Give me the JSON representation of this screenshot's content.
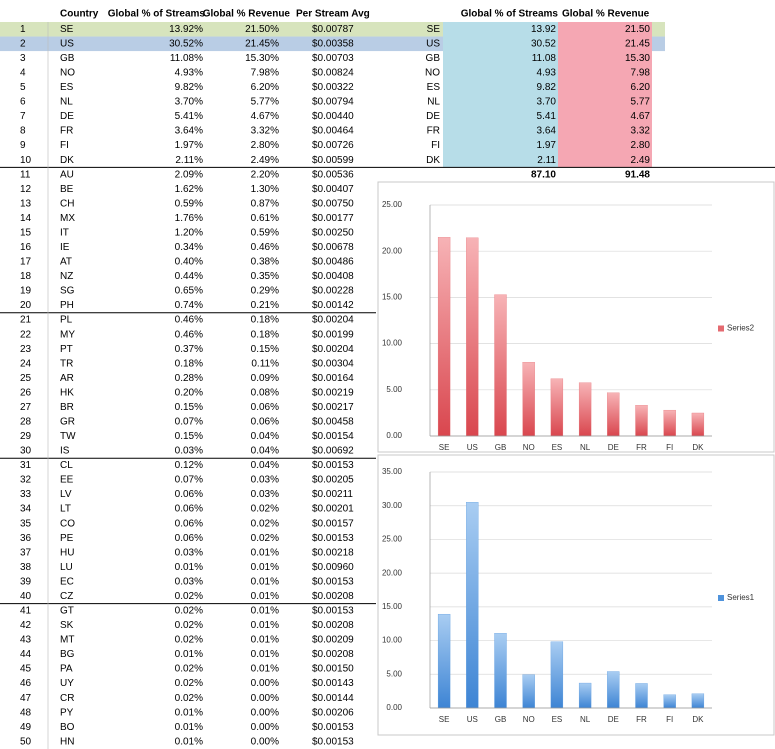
{
  "table": {
    "columns": [
      "Country",
      "Global % of Streams",
      "Global % Revenue",
      "Per Stream Avg"
    ],
    "rows": [
      [
        "1",
        "SE",
        "13.92%",
        "21.50%",
        "$0.00787"
      ],
      [
        "2",
        "US",
        "30.52%",
        "21.45%",
        "$0.00358"
      ],
      [
        "3",
        "GB",
        "11.08%",
        "15.30%",
        "$0.00703"
      ],
      [
        "4",
        "NO",
        "4.93%",
        "7.98%",
        "$0.00824"
      ],
      [
        "5",
        "ES",
        "9.82%",
        "6.20%",
        "$0.00322"
      ],
      [
        "6",
        "NL",
        "3.70%",
        "5.77%",
        "$0.00794"
      ],
      [
        "7",
        "DE",
        "5.41%",
        "4.67%",
        "$0.00440"
      ],
      [
        "8",
        "FR",
        "3.64%",
        "3.32%",
        "$0.00464"
      ],
      [
        "9",
        "FI",
        "1.97%",
        "2.80%",
        "$0.00726"
      ],
      [
        "10",
        "DK",
        "2.11%",
        "2.49%",
        "$0.00599"
      ],
      [
        "11",
        "AU",
        "2.09%",
        "2.20%",
        "$0.00536"
      ],
      [
        "12",
        "BE",
        "1.62%",
        "1.30%",
        "$0.00407"
      ],
      [
        "13",
        "CH",
        "0.59%",
        "0.87%",
        "$0.00750"
      ],
      [
        "14",
        "MX",
        "1.76%",
        "0.61%",
        "$0.00177"
      ],
      [
        "15",
        "IT",
        "1.20%",
        "0.59%",
        "$0.00250"
      ],
      [
        "16",
        "IE",
        "0.34%",
        "0.46%",
        "$0.00678"
      ],
      [
        "17",
        "AT",
        "0.40%",
        "0.38%",
        "$0.00486"
      ],
      [
        "18",
        "NZ",
        "0.44%",
        "0.35%",
        "$0.00408"
      ],
      [
        "19",
        "SG",
        "0.65%",
        "0.29%",
        "$0.00228"
      ],
      [
        "20",
        "PH",
        "0.74%",
        "0.21%",
        "$0.00142"
      ],
      [
        "21",
        "PL",
        "0.46%",
        "0.18%",
        "$0.00204"
      ],
      [
        "22",
        "MY",
        "0.46%",
        "0.18%",
        "$0.00199"
      ],
      [
        "23",
        "PT",
        "0.37%",
        "0.15%",
        "$0.00204"
      ],
      [
        "24",
        "TR",
        "0.18%",
        "0.11%",
        "$0.00304"
      ],
      [
        "25",
        "AR",
        "0.28%",
        "0.09%",
        "$0.00164"
      ],
      [
        "26",
        "HK",
        "0.20%",
        "0.08%",
        "$0.00219"
      ],
      [
        "27",
        "BR",
        "0.15%",
        "0.06%",
        "$0.00217"
      ],
      [
        "28",
        "GR",
        "0.07%",
        "0.06%",
        "$0.00458"
      ],
      [
        "29",
        "TW",
        "0.15%",
        "0.04%",
        "$0.00154"
      ],
      [
        "30",
        "IS",
        "0.03%",
        "0.04%",
        "$0.00692"
      ],
      [
        "31",
        "CL",
        "0.12%",
        "0.04%",
        "$0.00153"
      ],
      [
        "32",
        "EE",
        "0.07%",
        "0.03%",
        "$0.00205"
      ],
      [
        "33",
        "LV",
        "0.06%",
        "0.03%",
        "$0.00211"
      ],
      [
        "34",
        "LT",
        "0.06%",
        "0.02%",
        "$0.00201"
      ],
      [
        "35",
        "CO",
        "0.06%",
        "0.02%",
        "$0.00157"
      ],
      [
        "36",
        "PE",
        "0.06%",
        "0.02%",
        "$0.00153"
      ],
      [
        "37",
        "HU",
        "0.03%",
        "0.01%",
        "$0.00218"
      ],
      [
        "38",
        "LU",
        "0.01%",
        "0.01%",
        "$0.00960"
      ],
      [
        "39",
        "EC",
        "0.03%",
        "0.01%",
        "$0.00153"
      ],
      [
        "40",
        "CZ",
        "0.02%",
        "0.01%",
        "$0.00208"
      ],
      [
        "41",
        "GT",
        "0.02%",
        "0.01%",
        "$0.00153"
      ],
      [
        "42",
        "SK",
        "0.02%",
        "0.01%",
        "$0.00208"
      ],
      [
        "43",
        "MT",
        "0.02%",
        "0.01%",
        "$0.00209"
      ],
      [
        "44",
        "BG",
        "0.01%",
        "0.01%",
        "$0.00208"
      ],
      [
        "45",
        "PA",
        "0.02%",
        "0.01%",
        "$0.00150"
      ],
      [
        "46",
        "UY",
        "0.02%",
        "0.00%",
        "$0.00143"
      ],
      [
        "47",
        "CR",
        "0.02%",
        "0.00%",
        "$0.00144"
      ],
      [
        "48",
        "PY",
        "0.01%",
        "0.00%",
        "$0.00206"
      ],
      [
        "49",
        "BO",
        "0.01%",
        "0.00%",
        "$0.00153"
      ],
      [
        "50",
        "HN",
        "0.01%",
        "0.00%",
        "$0.00153"
      ]
    ]
  },
  "summary": {
    "columns": [
      "Global % of Streams",
      "Global % Revenue"
    ],
    "rows": [
      [
        "SE",
        "13.92",
        "21.50"
      ],
      [
        "US",
        "30.52",
        "21.45"
      ],
      [
        "GB",
        "11.08",
        "15.30"
      ],
      [
        "NO",
        "4.93",
        "7.98"
      ],
      [
        "ES",
        "9.82",
        "6.20"
      ],
      [
        "NL",
        "3.70",
        "5.77"
      ],
      [
        "DE",
        "5.41",
        "4.67"
      ],
      [
        "FR",
        "3.64",
        "3.32"
      ],
      [
        "FI",
        "1.97",
        "2.80"
      ],
      [
        "DK",
        "2.11",
        "2.49"
      ]
    ],
    "totals": [
      "87.10",
      "91.48"
    ]
  },
  "charts": [
    {
      "type": "bar",
      "categories": [
        "SE",
        "US",
        "GB",
        "NO",
        "ES",
        "NL",
        "DE",
        "FR",
        "FI",
        "DK"
      ],
      "series": [
        {
          "name": "Series2",
          "color": "#e46a70",
          "values": [
            21.5,
            21.45,
            15.3,
            7.98,
            6.2,
            5.77,
            4.67,
            3.32,
            2.8,
            2.49
          ]
        }
      ],
      "ylim": [
        0,
        25
      ],
      "yticks": [
        {
          "value": 0,
          "label": "0.00"
        },
        {
          "value": 5,
          "label": "5.00"
        },
        {
          "value": 10,
          "label": "10.00"
        },
        {
          "value": 15,
          "label": "15.00"
        },
        {
          "value": 20,
          "label": "20.00"
        },
        {
          "value": 25,
          "label": "25.00"
        }
      ],
      "grid": true
    },
    {
      "type": "bar",
      "categories": [
        "SE",
        "US",
        "GB",
        "NO",
        "ES",
        "NL",
        "DE",
        "FR",
        "FI",
        "DK"
      ],
      "series": [
        {
          "name": "Series1",
          "color": "#4f93dc",
          "values": [
            13.92,
            30.52,
            11.08,
            4.93,
            9.82,
            3.7,
            5.41,
            3.64,
            1.97,
            2.11
          ]
        }
      ],
      "ylim": [
        0,
        35
      ],
      "yticks": [
        {
          "value": 0,
          "label": "0.00"
        },
        {
          "value": 5,
          "label": "5.00"
        },
        {
          "value": 10,
          "label": "10.00"
        },
        {
          "value": 15,
          "label": "15.00"
        },
        {
          "value": 20,
          "label": "20.00"
        },
        {
          "value": 25,
          "label": "25.00"
        },
        {
          "value": 30,
          "label": "30.00"
        },
        {
          "value": 35,
          "label": "35.00"
        }
      ],
      "grid": true
    }
  ]
}
